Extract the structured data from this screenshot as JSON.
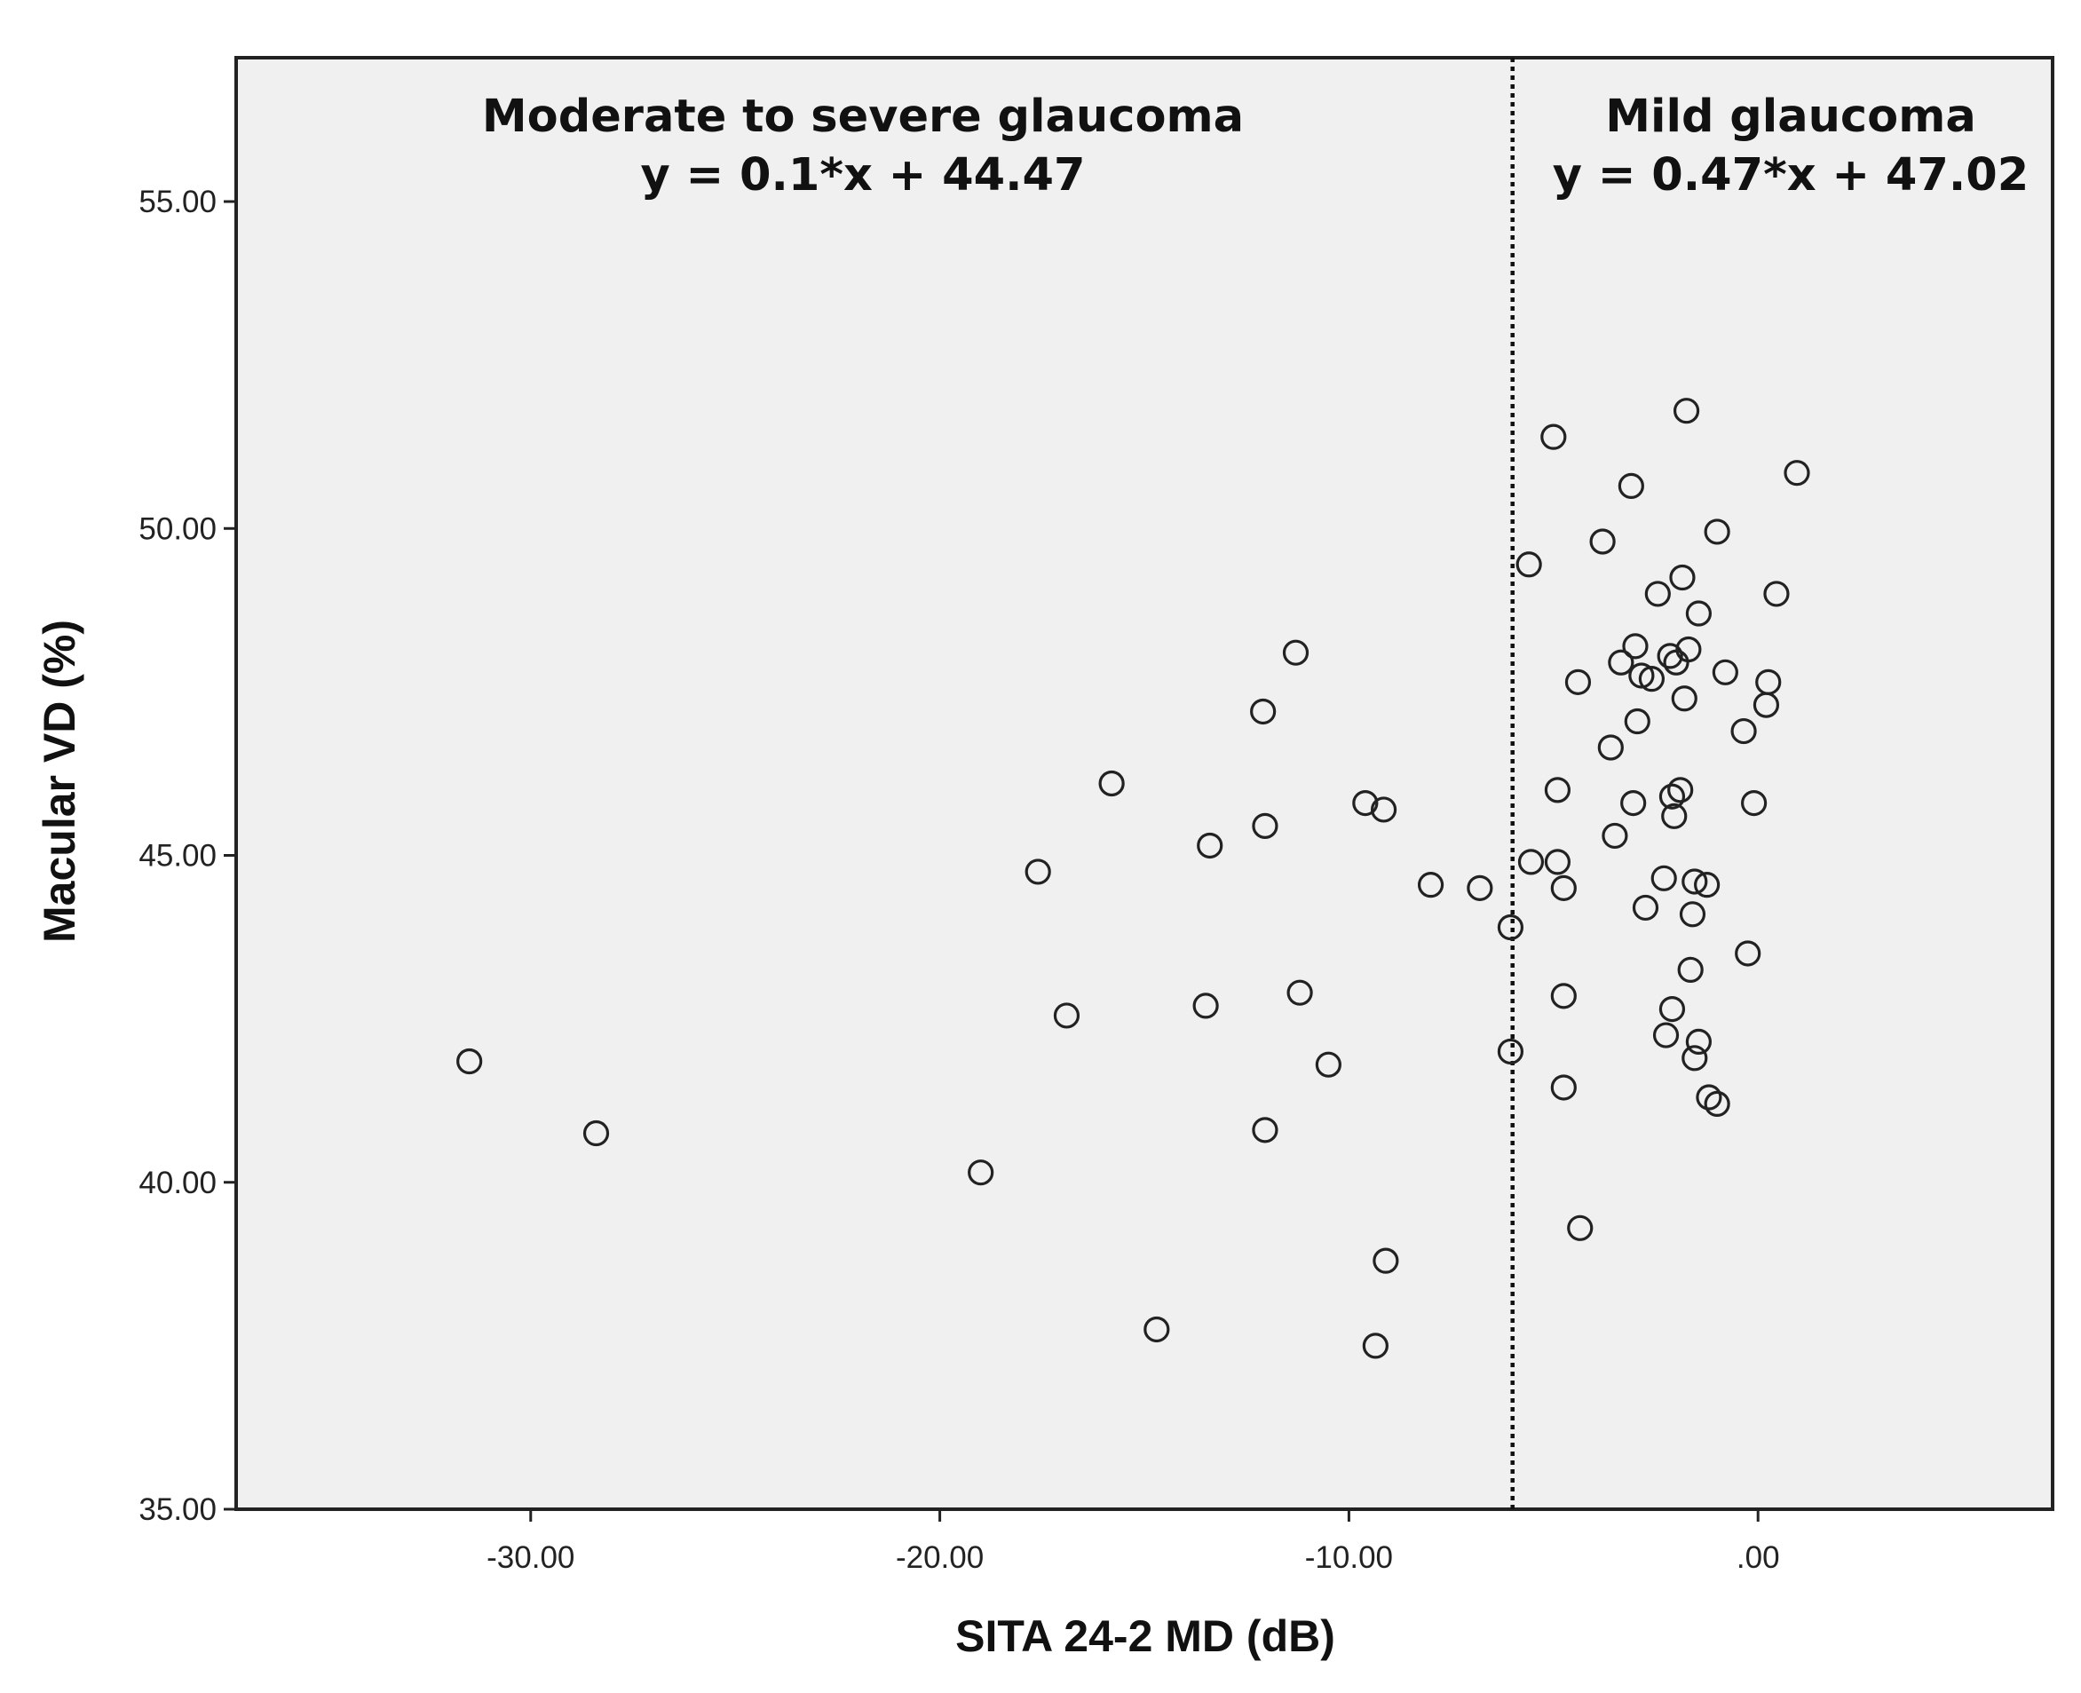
{
  "chart_data": {
    "type": "scatter",
    "title": "",
    "xlabel": "SITA 24-2 MD (dB)",
    "ylabel": "Macular VD (%)",
    "xlim": [
      -37.2,
      7.2
    ],
    "ylim": [
      35,
      57.2
    ],
    "xticks": [
      -30,
      -20,
      -10,
      0
    ],
    "xtick_labels": [
      "-30.00",
      "-20.00",
      "-10.00",
      ".00"
    ],
    "yticks": [
      35,
      40,
      45,
      50,
      55
    ],
    "ytick_labels": [
      "35.00",
      "40.00",
      "45.00",
      "50.00",
      "55.00"
    ],
    "grid": false,
    "legend": "none",
    "cutoff_x": -6,
    "annotations": [
      {
        "line1": "Moderate to severe glaucoma",
        "line2": "y = 0.1*x + 44.47"
      },
      {
        "line1": "Mild glaucoma",
        "line2": "y = 0.47*x + 47.02"
      }
    ],
    "points": [
      [
        -31.5,
        41.85
      ],
      [
        -28.4,
        40.75
      ],
      [
        -19.0,
        40.15
      ],
      [
        -17.6,
        44.75
      ],
      [
        -16.9,
        42.55
      ],
      [
        -15.8,
        46.1
      ],
      [
        -14.7,
        37.75
      ],
      [
        -13.5,
        42.7
      ],
      [
        -13.4,
        45.15
      ],
      [
        -12.1,
        47.2
      ],
      [
        -12.05,
        45.45
      ],
      [
        -12.05,
        40.8
      ],
      [
        -11.3,
        48.1
      ],
      [
        -11.2,
        42.9
      ],
      [
        -10.5,
        41.8
      ],
      [
        -9.6,
        45.8
      ],
      [
        -9.15,
        45.7
      ],
      [
        -9.1,
        38.8
      ],
      [
        -9.35,
        37.5
      ],
      [
        -8.0,
        44.55
      ],
      [
        -6.8,
        44.5
      ],
      [
        -6.05,
        43.9
      ],
      [
        -6.05,
        42.0
      ],
      [
        -5.6,
        49.45
      ],
      [
        -5.55,
        44.9
      ],
      [
        -5.0,
        51.4
      ],
      [
        -4.9,
        46.0
      ],
      [
        -4.9,
        44.9
      ],
      [
        -4.75,
        44.5
      ],
      [
        -4.75,
        42.85
      ],
      [
        -4.75,
        41.45
      ],
      [
        -4.4,
        47.65
      ],
      [
        -4.35,
        39.3
      ],
      [
        -3.8,
        49.8
      ],
      [
        -3.6,
        46.65
      ],
      [
        -3.5,
        45.3
      ],
      [
        -3.35,
        47.95
      ],
      [
        -3.1,
        50.65
      ],
      [
        -3.05,
        45.8
      ],
      [
        -3.0,
        48.2
      ],
      [
        -2.95,
        47.05
      ],
      [
        -2.85,
        47.75
      ],
      [
        -2.75,
        44.2
      ],
      [
        -2.6,
        47.7
      ],
      [
        -2.45,
        49.0
      ],
      [
        -2.3,
        44.65
      ],
      [
        -2.25,
        42.25
      ],
      [
        -2.15,
        48.05
      ],
      [
        -2.1,
        45.9
      ],
      [
        -2.1,
        42.65
      ],
      [
        -2.05,
        45.6
      ],
      [
        -2.0,
        47.95
      ],
      [
        -1.9,
        46.0
      ],
      [
        -1.85,
        49.25
      ],
      [
        -1.8,
        47.4
      ],
      [
        -1.75,
        51.8
      ],
      [
        -1.7,
        48.15
      ],
      [
        -1.65,
        43.25
      ],
      [
        -1.6,
        44.1
      ],
      [
        -1.55,
        44.6
      ],
      [
        -1.55,
        41.9
      ],
      [
        -1.45,
        48.7
      ],
      [
        -1.45,
        42.15
      ],
      [
        -1.25,
        44.55
      ],
      [
        -1.2,
        41.3
      ],
      [
        -1.0,
        49.95
      ],
      [
        -1.0,
        41.2
      ],
      [
        -0.8,
        47.8
      ],
      [
        -0.35,
        46.9
      ],
      [
        -0.25,
        43.5
      ],
      [
        -0.1,
        45.8
      ],
      [
        0.2,
        47.3
      ],
      [
        0.25,
        47.65
      ],
      [
        0.45,
        49.0
      ],
      [
        0.95,
        50.85
      ]
    ]
  }
}
